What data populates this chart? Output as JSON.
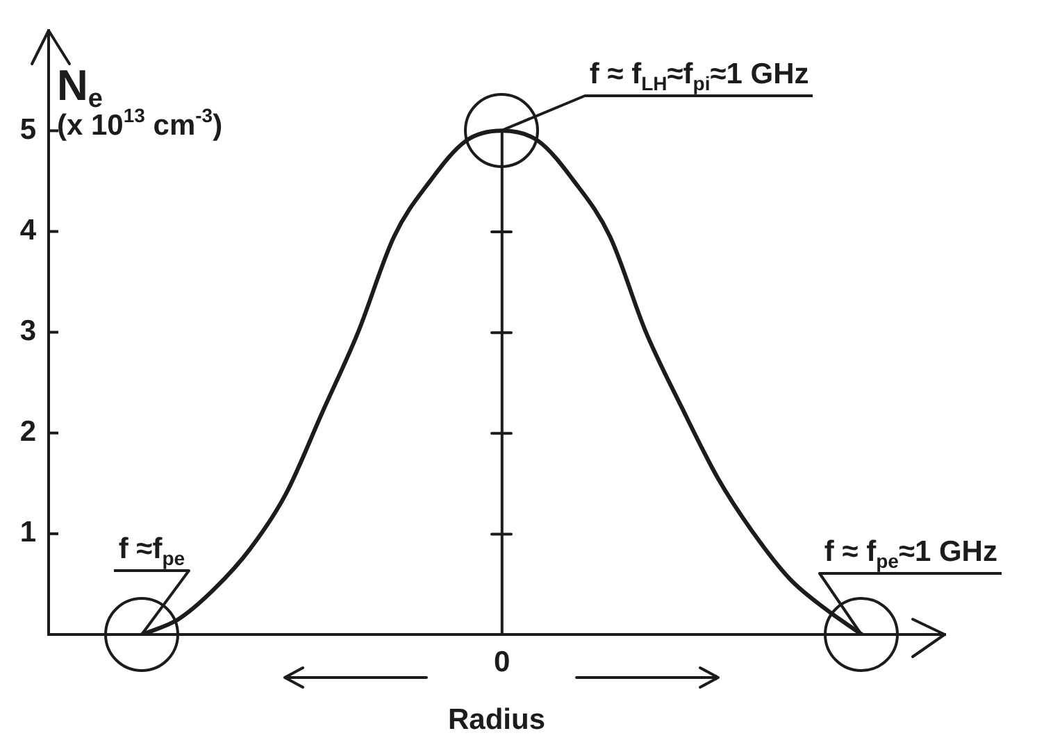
{
  "chart_data": {
    "type": "line",
    "categories": [
      null,
      null,
      null,
      null,
      null,
      null,
      null,
      null,
      null,
      null,
      "0",
      null,
      null,
      null,
      null,
      null,
      null,
      null,
      null,
      null,
      null
    ],
    "values": [
      0,
      0.15,
      0.45,
      0.85,
      1.4,
      2.2,
      3,
      3.95,
      4.5,
      4.9,
      5,
      4.9,
      4.5,
      3.95,
      3,
      2.25,
      1.55,
      1,
      0.55,
      0.25,
      0
    ],
    "color": "#1c1c1c",
    "ylim": [
      0,
      6
    ],
    "yticks": [
      1,
      2,
      3,
      4,
      5
    ],
    "xlabel": "Radius",
    "ylabel": "N$_{e}$ (x 10$^{13}$ cm$^{-3}$)",
    "ref_lines": [
      {
        "axis": "x",
        "value": "0"
      }
    ],
    "annotations": [
      "f ≈f$_{pe}$",
      {
        "text": "f ≈ f$_{LH}$≈f$_{pi}$≈1 GHz",
        "x": "0",
        "y": 5
      },
      "f ≈ f$_{pe}$≈1 GHz"
    ]
  }
}
